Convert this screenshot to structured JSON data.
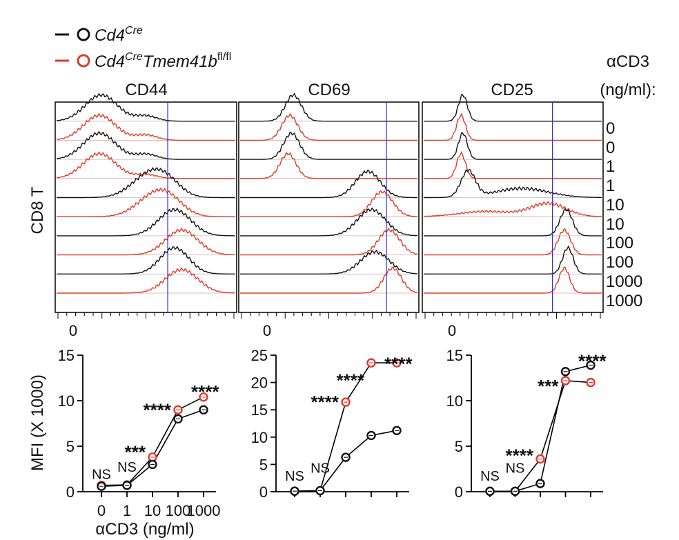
{
  "legend": {
    "items": [
      {
        "label": "Cd4",
        "sup": "Cre",
        "label2": "",
        "sup2": "",
        "color": "#111111"
      },
      {
        "label": "Cd4",
        "sup": "Cre",
        "label2": "Tmem41b",
        "sup2": "fl/fl",
        "color": "#e03a2a"
      }
    ]
  },
  "condition_header": {
    "line1": "αCD3",
    "line2": "(ng/ml):"
  },
  "row_label": "CD8 T",
  "lane_labels": [
    "0",
    "0",
    "1",
    "1",
    "10",
    "10",
    "100",
    "100",
    "1000",
    "1000"
  ],
  "colors": {
    "wt": "#111111",
    "ko": "#e03a2a",
    "gate": "#2b2bd6",
    "axis": "#000000",
    "baseline": "#999999"
  },
  "histogram_panels": [
    {
      "title": "CD44",
      "x_zero_label": "0",
      "gate": 0.62
    },
    {
      "title": "CD69",
      "x_zero_label": "0",
      "gate": 0.82
    },
    {
      "title": "CD25",
      "x_zero_label": "0",
      "gate": 0.72
    }
  ],
  "chart_data": [
    {
      "type": "line",
      "title": "CD44",
      "xlabel": "αCD3 (ng/ml)",
      "ylabel": "MFI (X 1000)",
      "categories": [
        "0",
        "1",
        "10",
        "100",
        "1000"
      ],
      "x_tick_labels": [
        "0",
        "1",
        "10",
        "100",
        "1000"
      ],
      "ylim": [
        0,
        15
      ],
      "yticks": [
        0,
        5,
        10,
        15
      ],
      "series": [
        {
          "name": "Cd4Cre",
          "color": "#111111",
          "values": [
            0.6,
            0.7,
            3.0,
            8.0,
            9.0
          ]
        },
        {
          "name": "Cd4Cre Tmem41b fl/fl",
          "color": "#e03a2a",
          "values": [
            0.7,
            0.75,
            3.8,
            9.0,
            10.4
          ]
        }
      ],
      "annotations": [
        {
          "text": "NS",
          "category": 0,
          "y": 1.4,
          "size": "small"
        },
        {
          "text": "NS",
          "category": 1,
          "y": 2.2,
          "size": "small"
        },
        {
          "text": "***",
          "category": 2,
          "y": 4.6,
          "size": "large"
        },
        {
          "text": "****",
          "category": 3,
          "y": 9.2,
          "size": "large"
        },
        {
          "text": "****",
          "category": 4,
          "y": 11.2,
          "size": "large"
        }
      ]
    },
    {
      "type": "line",
      "title": "CD69",
      "xlabel": "",
      "ylabel": "",
      "categories": [
        "0",
        "1",
        "10",
        "100",
        "1000"
      ],
      "x_tick_labels": [
        "",
        "",
        "",
        "",
        ""
      ],
      "ylim": [
        0,
        25
      ],
      "yticks": [
        0,
        5,
        10,
        15,
        20,
        25
      ],
      "series": [
        {
          "name": "Cd4Cre",
          "color": "#111111",
          "values": [
            0.1,
            0.2,
            6.3,
            10.3,
            11.2
          ]
        },
        {
          "name": "Cd4Cre Tmem41b fl/fl",
          "color": "#e03a2a",
          "values": [
            0.1,
            0.2,
            16.4,
            23.6,
            23.6
          ]
        }
      ],
      "annotations": [
        {
          "text": "NS",
          "category": 0,
          "y": 2.0,
          "size": "small"
        },
        {
          "text": "NS",
          "category": 1,
          "y": 3.5,
          "size": "small"
        },
        {
          "text": "****",
          "category": 2,
          "y": 16.8,
          "size": "large"
        },
        {
          "text": "****",
          "category": 3,
          "y": 20.8,
          "size": "large"
        },
        {
          "text": "****",
          "category": 4,
          "y": 23.8,
          "size": "large"
        }
      ]
    },
    {
      "type": "line",
      "title": "CD25",
      "xlabel": "",
      "ylabel": "",
      "categories": [
        "0",
        "1",
        "10",
        "100",
        "1000"
      ],
      "x_tick_labels": [
        "",
        "",
        "",
        "",
        ""
      ],
      "ylim": [
        0,
        15
      ],
      "yticks": [
        0,
        5,
        10,
        15
      ],
      "series": [
        {
          "name": "Cd4Cre",
          "color": "#111111",
          "values": [
            0.05,
            0.05,
            0.9,
            13.2,
            13.9
          ]
        },
        {
          "name": "Cd4Cre Tmem41b fl/fl",
          "color": "#e03a2a",
          "values": [
            0.05,
            0.05,
            3.6,
            12.2,
            12.0
          ]
        }
      ],
      "annotations": [
        {
          "text": "NS",
          "category": 0,
          "y": 1.2,
          "size": "small"
        },
        {
          "text": "NS",
          "category": 1,
          "y": 2.1,
          "size": "small"
        },
        {
          "text": "****",
          "category": 2,
          "y": 4.2,
          "size": "large"
        },
        {
          "text": "***",
          "category": 3,
          "y": 11.8,
          "size": "large"
        },
        {
          "text": "****",
          "category": 4,
          "y": 14.6,
          "size": "large"
        }
      ]
    }
  ]
}
